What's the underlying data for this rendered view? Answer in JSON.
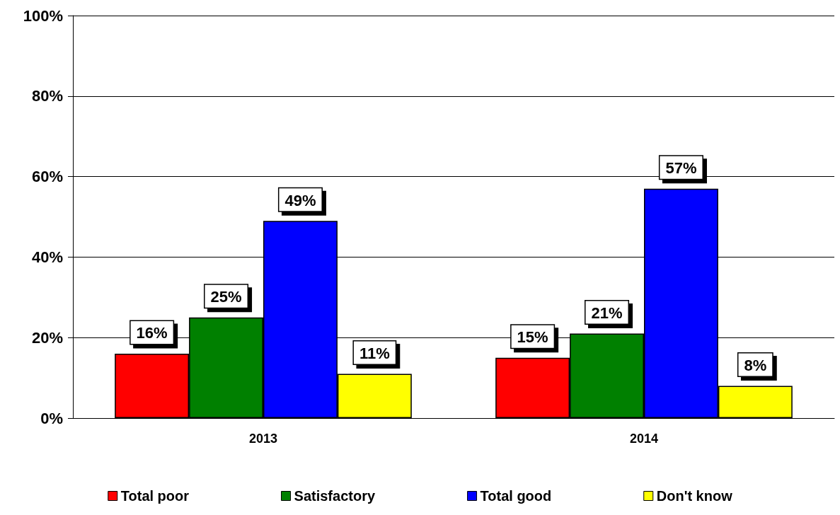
{
  "chart_data": {
    "type": "bar",
    "categories": [
      "2013",
      "2014"
    ],
    "series": [
      {
        "name": "Total poor",
        "color": "#ff0000",
        "values": [
          16,
          15
        ],
        "value_labels": [
          "16%",
          "15%"
        ]
      },
      {
        "name": "Satisfactory",
        "color": "#008000",
        "values": [
          25,
          21
        ],
        "value_labels": [
          "25%",
          "21%"
        ]
      },
      {
        "name": "Total good",
        "color": "#0000ff",
        "values": [
          49,
          57
        ],
        "value_labels": [
          "49%",
          "57%"
        ]
      },
      {
        "name": "Don't know",
        "color": "#ffff00",
        "values": [
          11,
          8
        ],
        "value_labels": [
          "11%",
          "8%"
        ]
      }
    ],
    "ylim": [
      0,
      100
    ],
    "yticks": [
      {
        "value": 0,
        "label": "0%"
      },
      {
        "value": 20,
        "label": "20%"
      },
      {
        "value": 40,
        "label": "40%"
      },
      {
        "value": 60,
        "label": "60%"
      },
      {
        "value": 80,
        "label": "80%"
      },
      {
        "value": 100,
        "label": "100%"
      }
    ],
    "grid": "y",
    "legend": "bottom"
  }
}
